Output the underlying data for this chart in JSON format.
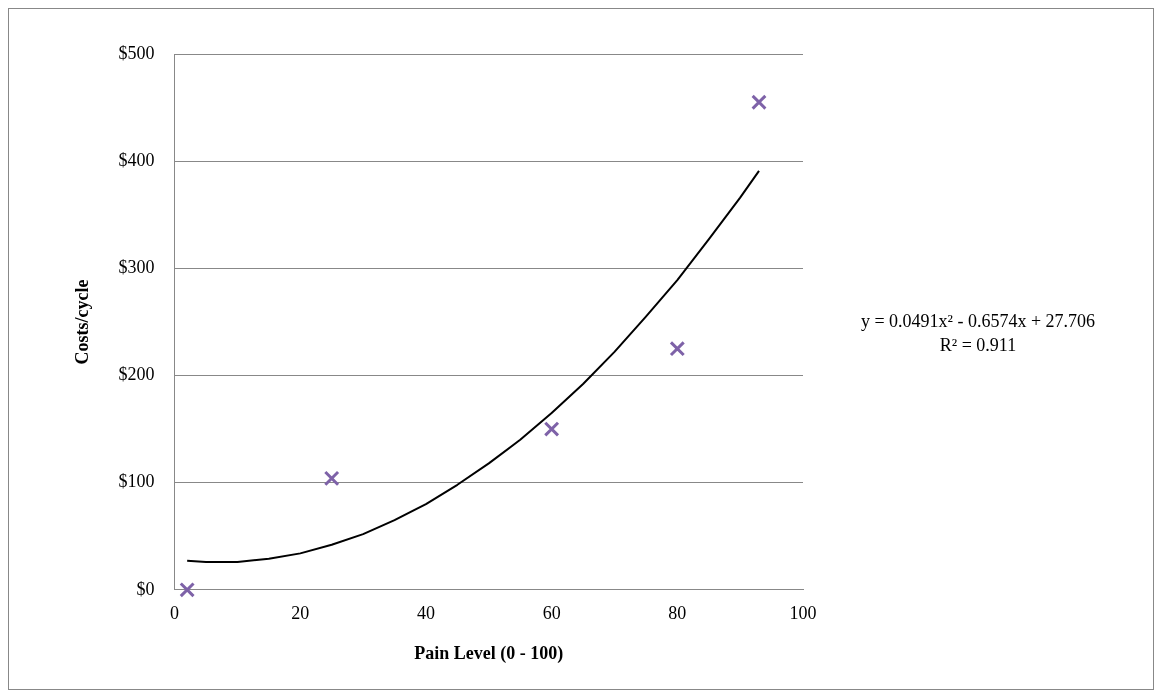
{
  "chart_data": {
    "type": "scatter",
    "xlabel": "Pain Level (0 - 100)",
    "ylabel": "Costs/cycle",
    "series": [
      {
        "type": "scatter",
        "color": "#7e62a8",
        "marker": "cross",
        "x": [
          2,
          25,
          60,
          80,
          93
        ],
        "values": [
          0,
          104,
          150,
          225,
          455
        ]
      },
      {
        "type": "line",
        "color": "#000000",
        "marker": "none",
        "x": [
          2,
          5,
          10,
          15,
          20,
          25,
          30,
          35,
          40,
          45,
          50,
          55,
          60,
          65,
          70,
          75,
          80,
          85,
          90,
          93
        ],
        "values": [
          27,
          26,
          26,
          29,
          34,
          42,
          52,
          65,
          80,
          98,
          118,
          140,
          165,
          192,
          222,
          255,
          289,
          327,
          366,
          391
        ]
      }
    ],
    "xlim": [
      0,
      100
    ],
    "xticks": [
      0,
      20,
      40,
      60,
      80,
      100
    ],
    "ylim": [
      0,
      500
    ],
    "yticks": [
      {
        "value": 0,
        "label": "$0"
      },
      {
        "value": 100,
        "label": "$100"
      },
      {
        "value": 200,
        "label": "$200"
      },
      {
        "value": 300,
        "label": "$300"
      },
      {
        "value": 400,
        "label": "$400"
      },
      {
        "value": 500,
        "label": "$500"
      }
    ],
    "grid": "y",
    "legend": false,
    "annotations": [
      "y = 0.0491x² - 0.6574x + 27.706",
      "R² = 0.911"
    ]
  }
}
